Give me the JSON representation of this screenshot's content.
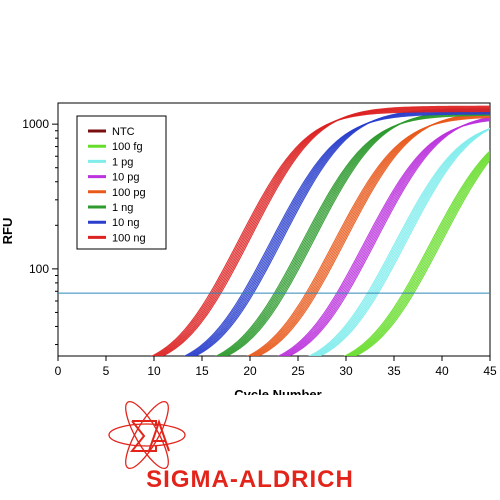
{
  "chart_data": {
    "type": "line",
    "title": "",
    "xlabel": "Cycle Number",
    "ylabel": "RFU",
    "xlim": [
      0,
      45
    ],
    "ylim": [
      25,
      1400
    ],
    "yscale": "log",
    "xticks": [
      0,
      5,
      10,
      15,
      20,
      25,
      30,
      35,
      40,
      45
    ],
    "yticks": [
      100,
      1000
    ],
    "threshold": 68,
    "grid": false,
    "legend_position": "top-left",
    "series": [
      {
        "name": "NTC",
        "color": "#7a0f0f",
        "ct": null,
        "plateau": 1200
      },
      {
        "name": "100 fg",
        "color": "#66dd2a",
        "ct": 36.5,
        "plateau": 1150
      },
      {
        "name": "1 pg",
        "color": "#80ecec",
        "ct": 32.8,
        "plateau": 1150
      },
      {
        "name": "10 pg",
        "color": "#bb33dd",
        "ct": 29.6,
        "plateau": 1180
      },
      {
        "name": "100 pg",
        "color": "#e85a1c",
        "ct": 26.4,
        "plateau": 1200
      },
      {
        "name": "1 ng",
        "color": "#2e9a2e",
        "ct": 23.1,
        "plateau": 1230
      },
      {
        "name": "10 ng",
        "color": "#2a3fcc",
        "ct": 19.8,
        "plateau": 1250
      },
      {
        "name": "100 ng",
        "color": "#dd2222",
        "ct": 16.4,
        "plateau": 1300
      }
    ]
  },
  "branding": {
    "company": "SIGMA-ALDRICH",
    "color": "#e3241b"
  }
}
